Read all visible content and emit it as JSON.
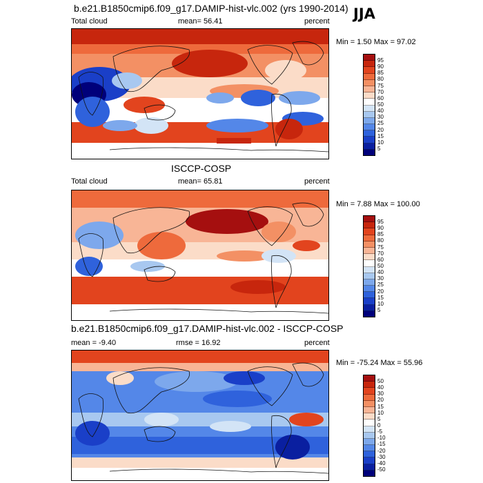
{
  "season": "JJA",
  "panels": [
    {
      "title": "b.e21.B1850cmip6.f09_g17.DAMIP-hist-vlc.002 (yrs 1990-2014)",
      "left_label": "Total cloud",
      "center_label": "mean=  56.41",
      "right_label": "percent",
      "minmax": "Min =   1.50 Max =  97.02",
      "colorbar_levels": [
        "95",
        "90",
        "85",
        "80",
        "75",
        "70",
        "60",
        "50",
        "40",
        "30",
        "25",
        "20",
        "15",
        "10",
        "5"
      ],
      "colorbar_colors": [
        "#a50f0f",
        "#c7260d",
        "#e2441e",
        "#ee6a3c",
        "#f39064",
        "#f8b596",
        "#fbdcc8",
        "#ffffff",
        "#d3e4f6",
        "#a8c8f0",
        "#7da8ec",
        "#5487e8",
        "#2f62dc",
        "#1a3fc8",
        "#0a1fa0",
        "#00007a"
      ]
    },
    {
      "title": "ISCCP-COSP",
      "left_label": "Total cloud",
      "center_label": "mean=  65.81",
      "right_label": "percent",
      "minmax": "Min =   7.88 Max = 100.00",
      "colorbar_levels": [
        "95",
        "90",
        "85",
        "80",
        "75",
        "70",
        "60",
        "50",
        "40",
        "30",
        "25",
        "20",
        "15",
        "10",
        "5"
      ],
      "colorbar_colors": [
        "#a50f0f",
        "#c7260d",
        "#e2441e",
        "#ee6a3c",
        "#f39064",
        "#f8b596",
        "#fbdcc8",
        "#ffffff",
        "#d3e4f6",
        "#a8c8f0",
        "#7da8ec",
        "#5487e8",
        "#2f62dc",
        "#1a3fc8",
        "#0a1fa0",
        "#00007a"
      ]
    },
    {
      "title": "b.e21.B1850cmip6.f09_g17.DAMIP-hist-vlc.002 - ISCCP-COSP",
      "left_label": "mean =  -9.40",
      "center_label": "rmse =  16.92",
      "right_label": "percent",
      "minmax": "Min = -75.24 Max =  55.96",
      "colorbar_levels": [
        "50",
        "40",
        "30",
        "20",
        "15",
        "10",
        "5",
        "0",
        "-5",
        "-10",
        "-15",
        "-20",
        "-30",
        "-40",
        "-50"
      ],
      "colorbar_colors": [
        "#a50f0f",
        "#c7260d",
        "#e2441e",
        "#ee6a3c",
        "#f39064",
        "#f8b596",
        "#fbdcc8",
        "#ffffff",
        "#d3e4f6",
        "#a8c8f0",
        "#7da8ec",
        "#5487e8",
        "#2f62dc",
        "#1a3fc8",
        "#0a1fa0",
        "#00007a"
      ]
    }
  ]
}
